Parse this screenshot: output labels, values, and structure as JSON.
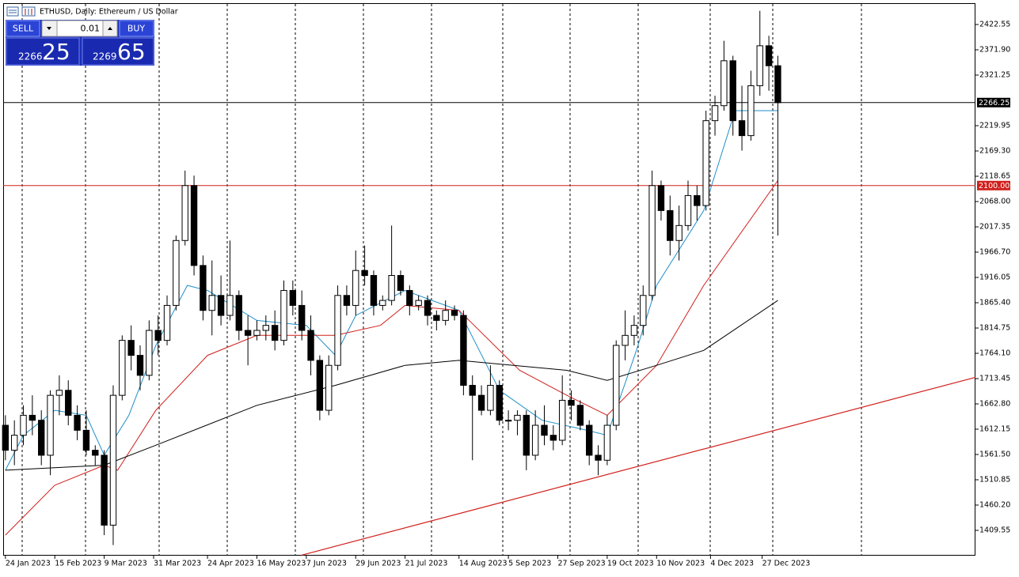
{
  "header": {
    "title": "ETHUSD, Daily:  Ethereum / US Dollar"
  },
  "trade_panel": {
    "sell": "SELL",
    "buy": "BUY",
    "lot": "0.01",
    "bid_small": "2266",
    "bid_big": "25",
    "ask_small": "2269",
    "ask_big": "65"
  },
  "chart_data": {
    "type": "candlestick",
    "xlim": [
      "23 Jan 2023",
      "31 Mar 2024"
    ],
    "ylim": [
      1358.9,
      2465.3
    ],
    "xticks": [
      "24 Jan 2023",
      "15 Feb 2023",
      "9 Mar 2023",
      "31 Mar 2023",
      "24 Apr 2023",
      "16 May 2023",
      "7 Jun 2023",
      "29 Jun 2023",
      "21 Jul 2023",
      "14 Aug 2023",
      "5 Sep 2023",
      "27 Sep 2023",
      "19 Oct 2023",
      "10 Nov 2023",
      "4 Dec 2023",
      "27 Dec 2023"
    ],
    "yticks": [
      2422.55,
      {
        "value": 2371.9,
        "label": "2371.90"
      },
      2321.25,
      2219.95,
      {
        "value": 2169.3,
        "label": "2169.30"
      },
      2118.65,
      {
        "value": 2068,
        "label": "2068.00"
      },
      2017.35,
      {
        "value": 1966.7,
        "label": "1966.70"
      },
      1916.05,
      {
        "value": 1865.4,
        "label": "1865.40"
      },
      1814.75,
      {
        "value": 1764.1,
        "label": "1764.10"
      },
      1713.45,
      {
        "value": 1662.8,
        "label": "1662.80"
      },
      1612.15,
      {
        "value": 1561.5,
        "label": "1561.50"
      },
      1510.85,
      {
        "value": 1460.2,
        "label": "1460.20"
      },
      1409.55
    ],
    "bull_color": "#ffffff",
    "bear_color": "#000000",
    "candles": {
      "x": [
        "24 Jan 2023",
        "28 Jan 2023",
        "1 Feb 2023",
        "5 Feb 2023",
        "9 Feb 2023",
        "13 Feb 2023",
        "17 Feb 2023",
        "21 Feb 2023",
        "25 Feb 2023",
        "1 Mar 2023",
        "5 Mar 2023",
        "9 Mar 2023",
        "13 Mar 2023",
        "17 Mar 2023",
        "21 Mar 2023",
        "25 Mar 2023",
        "29 Mar 2023",
        "2 Apr 2023",
        "6 Apr 2023",
        "10 Apr 2023",
        "14 Apr 2023",
        "18 Apr 2023",
        "22 Apr 2023",
        "26 Apr 2023",
        "30 Apr 2023",
        "4 May 2023",
        "8 May 2023",
        "12 May 2023",
        "16 May 2023",
        "20 May 2023",
        "24 May 2023",
        "28 May 2023",
        "1 Jun 2023",
        "5 Jun 2023",
        "9 Jun 2023",
        "13 Jun 2023",
        "17 Jun 2023",
        "21 Jun 2023",
        "25 Jun 2023",
        "29 Jun 2023",
        "3 Jul 2023",
        "7 Jul 2023",
        "11 Jul 2023",
        "15 Jul 2023",
        "19 Jul 2023",
        "23 Jul 2023",
        "27 Jul 2023",
        "31 Jul 2023",
        "4 Aug 2023",
        "8 Aug 2023",
        "12 Aug 2023",
        "16 Aug 2023",
        "20 Aug 2023",
        "24 Aug 2023",
        "28 Aug 2023",
        "1 Sep 2023",
        "5 Sep 2023",
        "9 Sep 2023",
        "13 Sep 2023",
        "17 Sep 2023",
        "21 Sep 2023",
        "25 Sep 2023",
        "29 Sep 2023",
        "3 Oct 2023",
        "7 Oct 2023",
        "11 Oct 2023",
        "15 Oct 2023",
        "19 Oct 2023",
        "23 Oct 2023",
        "27 Oct 2023",
        "31 Oct 2023",
        "4 Nov 2023",
        "8 Nov 2023",
        "12 Nov 2023",
        "16 Nov 2023",
        "20 Nov 2023",
        "24 Nov 2023",
        "28 Nov 2023",
        "2 Dec 2023",
        "6 Dec 2023",
        "10 Dec 2023",
        "14 Dec 2023",
        "18 Dec 2023",
        "22 Dec 2023",
        "26 Dec 2023",
        "30 Dec 2023",
        "3 Jan 2024"
      ],
      "open": [
        1620,
        1570,
        1600,
        1640,
        1630,
        1560,
        1680,
        1690,
        1640,
        1610,
        1570,
        1560,
        1420,
        1680,
        1790,
        1760,
        1720,
        1810,
        1790,
        1860,
        1990,
        2100,
        1940,
        1850,
        1880,
        1840,
        1880,
        1810,
        1800,
        1810,
        1820,
        1790,
        1890,
        1860,
        1810,
        1750,
        1650,
        1740,
        1880,
        1860,
        1930,
        1920,
        1860,
        1870,
        1920,
        1890,
        1860,
        1870,
        1840,
        1830,
        1850,
        1840,
        1700,
        1680,
        1650,
        1700,
        1630,
        1630,
        1640,
        1560,
        1620,
        1600,
        1590,
        1670,
        1660,
        1620,
        1560,
        1550,
        1620,
        1780,
        1800,
        1820,
        1880,
        2100,
        2050,
        1990,
        2020,
        2080,
        2060,
        2230,
        2260,
        2350,
        2230,
        2200,
        2300,
        2380,
        2340
      ],
      "high": [
        1640,
        1630,
        1660,
        1680,
        1650,
        1690,
        1720,
        1710,
        1660,
        1650,
        1580,
        1570,
        1700,
        1800,
        1820,
        1780,
        1830,
        1840,
        1880,
        2000,
        2130,
        2120,
        1960,
        1950,
        1920,
        1990,
        1890,
        1840,
        1830,
        1840,
        1850,
        1910,
        1910,
        1890,
        1840,
        1760,
        1760,
        1900,
        1900,
        1970,
        1980,
        1930,
        1880,
        2020,
        1930,
        1900,
        1880,
        1880,
        1850,
        1870,
        1860,
        1850,
        1720,
        1700,
        1740,
        1710,
        1650,
        1650,
        1650,
        1650,
        1660,
        1620,
        1720,
        1690,
        1670,
        1630,
        1580,
        1640,
        1790,
        1850,
        1840,
        1900,
        2130,
        2110,
        2080,
        2060,
        2110,
        2100,
        2250,
        2280,
        2390,
        2360,
        2300,
        2330,
        2450,
        2400,
        2360
      ],
      "low": [
        1550,
        1540,
        1580,
        1600,
        1540,
        1520,
        1640,
        1620,
        1590,
        1560,
        1540,
        1400,
        1380,
        1670,
        1730,
        1690,
        1710,
        1760,
        1780,
        1850,
        1980,
        1920,
        1830,
        1800,
        1820,
        1830,
        1790,
        1740,
        1790,
        1790,
        1770,
        1780,
        1840,
        1790,
        1720,
        1630,
        1640,
        1730,
        1840,
        1840,
        1900,
        1840,
        1850,
        1860,
        1880,
        1840,
        1850,
        1820,
        1810,
        1820,
        1830,
        1680,
        1550,
        1640,
        1640,
        1620,
        1610,
        1600,
        1530,
        1550,
        1580,
        1570,
        1580,
        1630,
        1610,
        1540,
        1520,
        1540,
        1610,
        1750,
        1780,
        1800,
        1870,
        2030,
        1960,
        1950,
        2010,
        2030,
        2050,
        2200,
        2250,
        2200,
        2170,
        2190,
        2280,
        2290,
        2000
      ],
      "close": [
        1570,
        1600,
        1640,
        1630,
        1560,
        1680,
        1690,
        1640,
        1610,
        1570,
        1560,
        1420,
        1680,
        1790,
        1760,
        1720,
        1810,
        1790,
        1860,
        1990,
        2100,
        1940,
        1850,
        1880,
        1840,
        1880,
        1810,
        1800,
        1810,
        1820,
        1790,
        1890,
        1860,
        1810,
        1750,
        1650,
        1740,
        1880,
        1860,
        1930,
        1920,
        1860,
        1870,
        1920,
        1890,
        1860,
        1870,
        1840,
        1830,
        1850,
        1840,
        1700,
        1680,
        1650,
        1700,
        1630,
        1630,
        1640,
        1560,
        1620,
        1600,
        1590,
        1670,
        1660,
        1620,
        1560,
        1550,
        1620,
        1780,
        1800,
        1820,
        1880,
        2100,
        2050,
        1990,
        2020,
        2080,
        2060,
        2230,
        2260,
        2350,
        2230,
        2200,
        2300,
        2380,
        2340,
        2266
      ]
    },
    "moving_averages": [
      {
        "color": "#1f8fc9",
        "x": [
          "24 Jan 2023",
          "1 Feb 2023",
          "15 Feb 2023",
          "1 Mar 2023",
          "9 Mar 2023",
          "20 Mar 2023",
          "1 Apr 2023",
          "15 Apr 2023",
          "24 Apr 2023",
          "16 May 2023",
          "7 Jun 2023",
          "20 Jun 2023",
          "29 Jun 2023",
          "21 Jul 2023",
          "14 Aug 2023",
          "1 Sep 2023",
          "20 Sep 2023",
          "10 Oct 2023",
          "19 Oct 2023",
          "1 Nov 2023",
          "10 Nov 2023",
          "1 Dec 2023",
          "15 Dec 2023",
          "3 Jan 2024"
        ],
        "values": [
          1530,
          1600,
          1650,
          1640,
          1560,
          1640,
          1780,
          1900,
          1890,
          1830,
          1820,
          1760,
          1840,
          1890,
          1850,
          1690,
          1630,
          1610,
          1600,
          1770,
          1900,
          2050,
          2250,
          2250
        ]
      },
      {
        "color": "#d0201c",
        "x": [
          "24 Jan 2023",
          "15 Feb 2023",
          "9 Mar 2023",
          "15 Mar 2023",
          "1 Apr 2023",
          "24 Apr 2023",
          "16 May 2023",
          "20 Jun 2023",
          "10 Jul 2023",
          "21 Jul 2023",
          "14 Aug 2023",
          "10 Sep 2023",
          "1 Oct 2023",
          "19 Oct 2023",
          "10 Nov 2023",
          "1 Dec 2023",
          "3 Jan 2024"
        ],
        "values": [
          1400,
          1500,
          1540,
          1530,
          1650,
          1760,
          1800,
          1800,
          1820,
          1860,
          1850,
          1730,
          1680,
          1640,
          1740,
          1900,
          2110
        ]
      },
      {
        "color": "#000000",
        "x": [
          "24 Jan 2023",
          "9 Mar 2023",
          "1 Apr 2023",
          "16 May 2023",
          "20 Jun 2023",
          "21 Jul 2023",
          "14 Aug 2023",
          "1 Oct 2023",
          "19 Oct 2023",
          "10 Nov 2023",
          "1 Dec 2023",
          "3 Jan 2024"
        ],
        "values": [
          1530,
          1540,
          1580,
          1660,
          1700,
          1740,
          1750,
          1730,
          1710,
          1740,
          1770,
          1870
        ]
      }
    ],
    "trend_line": {
      "color": "#d0201c",
      "x": [
        "5 Jun 2023",
        "31 Mar 2024"
      ],
      "values": [
        1360,
        1716
      ]
    },
    "price_lines": [
      {
        "value": 2266.25,
        "label": "2266.25",
        "color": "#000000"
      },
      {
        "value": 2100,
        "label": "2100.00",
        "color": "#d0201c"
      }
    ]
  }
}
